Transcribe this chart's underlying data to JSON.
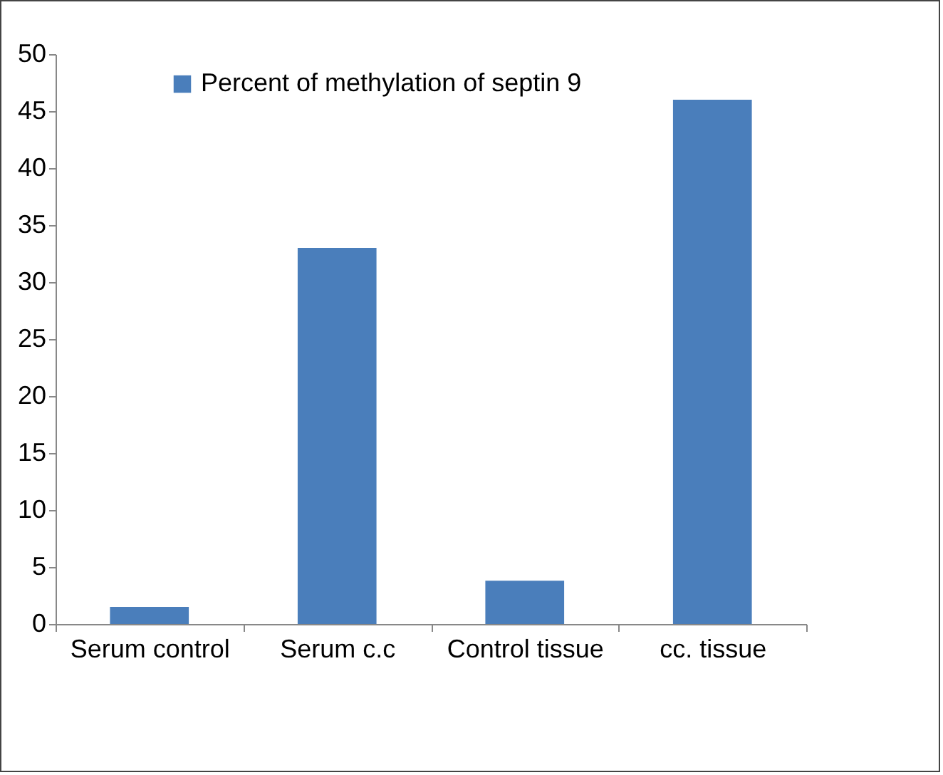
{
  "chart_data": {
    "type": "bar",
    "categories": [
      "Serum control",
      "Serum c.c",
      "Control tissue",
      "cc. tissue"
    ],
    "series": [
      {
        "name": "Percent of methylation of septin 9",
        "color": "#4a7ebb",
        "values": [
          1.5,
          33,
          3.8,
          46
        ]
      }
    ],
    "ylim": [
      0,
      50
    ],
    "yticks": [
      0,
      5,
      10,
      15,
      20,
      25,
      30,
      35,
      40,
      45,
      50
    ],
    "grid": false,
    "legend": "top left"
  }
}
